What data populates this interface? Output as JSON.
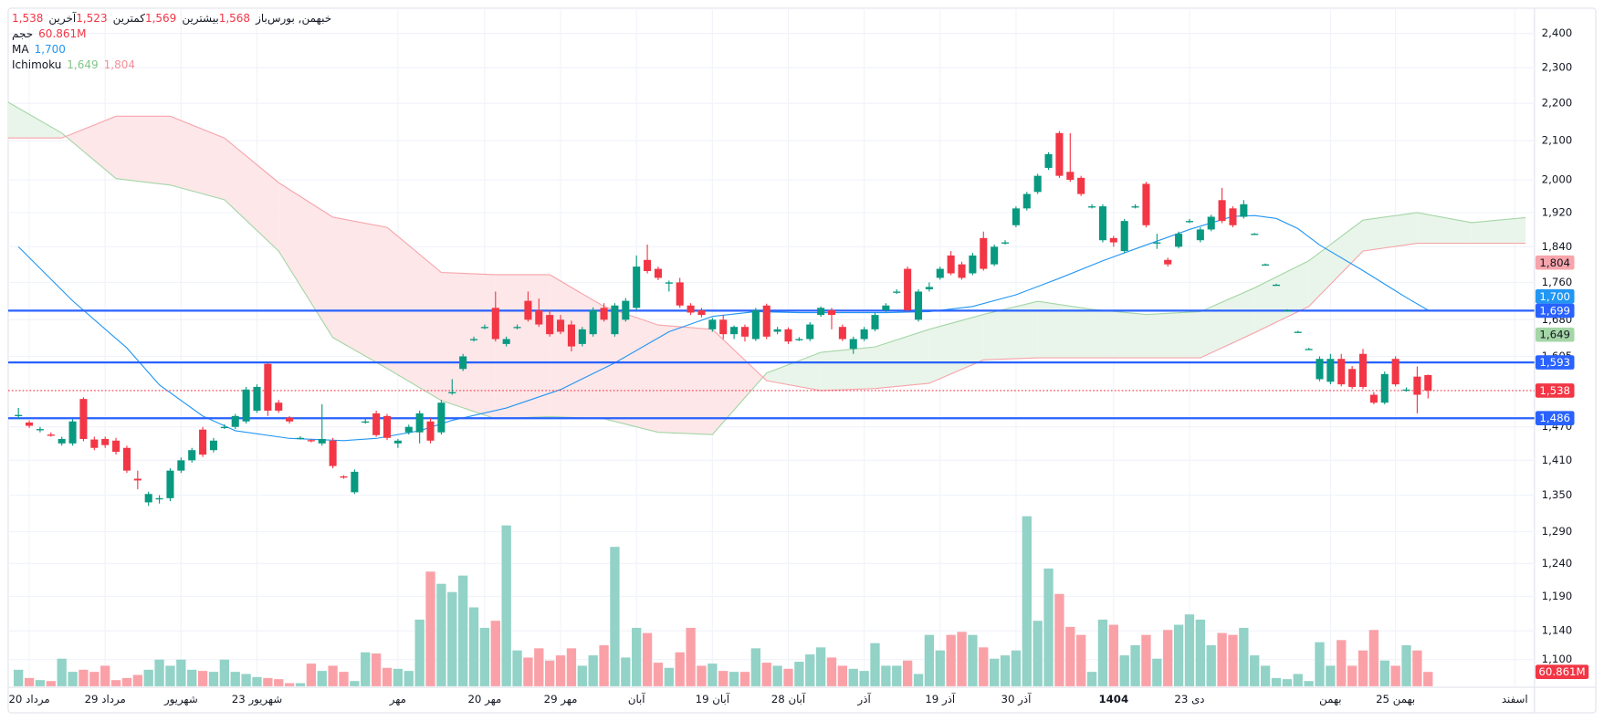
{
  "chart_data": {
    "type": "candlestick",
    "log_scale": true,
    "grid": true,
    "ylim": [
      1064,
      2477
    ],
    "yticks": [
      {
        "value": 2400,
        "label": "2,400"
      },
      {
        "value": 2300,
        "label": "2,300"
      },
      {
        "value": 2200,
        "label": "2,200"
      },
      {
        "value": 2100,
        "label": "2,100"
      },
      {
        "value": 2000,
        "label": "2,000"
      },
      {
        "value": 1920,
        "label": "1,920"
      },
      {
        "value": 1840,
        "label": "1,840"
      },
      {
        "value": 1760,
        "label": "1,760"
      },
      {
        "value": 1680,
        "label": "1,680"
      },
      {
        "value": 1605,
        "label": "1,605"
      },
      {
        "value": 1470,
        "label": "1,470"
      },
      {
        "value": 1410,
        "label": "1,410"
      },
      {
        "value": 1350,
        "label": "1,350"
      },
      {
        "value": 1290,
        "label": "1,290"
      },
      {
        "value": 1240,
        "label": "1,240"
      },
      {
        "value": 1190,
        "label": "1,190"
      },
      {
        "value": 1140,
        "label": "1,140"
      },
      {
        "value": 1100,
        "label": "1,100"
      }
    ],
    "xticks": [
      {
        "value": 1,
        "label": "20 مرداد"
      },
      {
        "value": 8,
        "label": "29 مرداد"
      },
      {
        "value": 15,
        "label": "شهریور"
      },
      {
        "value": 22,
        "label": "23 شهریور"
      },
      {
        "value": 35,
        "label": "مهر"
      },
      {
        "value": 43,
        "label": "20 مهر"
      },
      {
        "value": 50,
        "label": "29 مهر"
      },
      {
        "value": 57,
        "label": "آبان"
      },
      {
        "value": 64,
        "label": "19 آبان"
      },
      {
        "value": 71,
        "label": "28 آبان"
      },
      {
        "value": 78,
        "label": "آذر"
      },
      {
        "value": 85,
        "label": "19 آذر"
      },
      {
        "value": 92,
        "label": "30 آذر"
      },
      {
        "value": 101,
        "label": "1404",
        "bold": true
      },
      {
        "value": 108,
        "label": "23 دی"
      },
      {
        "value": 121,
        "label": "بهمن"
      },
      {
        "value": 127,
        "label": "25 بهمن"
      },
      {
        "value": 138,
        "label": "اسفند"
      }
    ],
    "up_color": "#089981",
    "down_color": "#f23645",
    "candles": [
      [
        1490,
        1505,
        1484,
        1492
      ],
      [
        1478,
        1482,
        1468,
        1472
      ],
      [
        1465,
        1470,
        1460,
        1466
      ],
      [
        1456,
        1460,
        1452,
        1455
      ],
      [
        1440,
        1452,
        1436,
        1448
      ],
      [
        1440,
        1484,
        1436,
        1480
      ],
      [
        1522,
        1525,
        1444,
        1448
      ],
      [
        1447,
        1452,
        1428,
        1432
      ],
      [
        1448,
        1452,
        1432,
        1437
      ],
      [
        1445,
        1450,
        1420,
        1425
      ],
      [
        1432,
        1436,
        1388,
        1392
      ],
      [
        1378,
        1392,
        1360,
        1375
      ],
      [
        1338,
        1356,
        1332,
        1352
      ],
      [
        1344,
        1350,
        1336,
        1345
      ],
      [
        1345,
        1396,
        1340,
        1392
      ],
      [
        1392,
        1415,
        1388,
        1410
      ],
      [
        1410,
        1432,
        1406,
        1428
      ],
      [
        1465,
        1470,
        1416,
        1420
      ],
      [
        1428,
        1450,
        1424,
        1445
      ],
      [
        1470,
        1475,
        1466,
        1470
      ],
      [
        1470,
        1494,
        1466,
        1490
      ],
      [
        1480,
        1545,
        1476,
        1540
      ],
      [
        1500,
        1550,
        1496,
        1545
      ],
      [
        1590,
        1592,
        1490,
        1500
      ],
      [
        1515,
        1520,
        1496,
        1500
      ],
      [
        1487,
        1490,
        1476,
        1480
      ],
      [
        1450,
        1453,
        1447,
        1450
      ],
      [
        1446,
        1448,
        1442,
        1445
      ],
      [
        1440,
        1512,
        1436,
        1448
      ],
      [
        1445,
        1450,
        1396,
        1400
      ],
      [
        1382,
        1384,
        1378,
        1380
      ],
      [
        1355,
        1394,
        1352,
        1390
      ],
      [
        1480,
        1485,
        1476,
        1480
      ],
      [
        1495,
        1500,
        1452,
        1455
      ],
      [
        1490,
        1494,
        1446,
        1450
      ],
      [
        1440,
        1448,
        1432,
        1445
      ],
      [
        1460,
        1474,
        1456,
        1470
      ],
      [
        1460,
        1500,
        1440,
        1495
      ],
      [
        1480,
        1486,
        1440,
        1445
      ],
      [
        1460,
        1520,
        1456,
        1515
      ],
      [
        1535,
        1560,
        1530,
        1535
      ],
      [
        1580,
        1610,
        1576,
        1605
      ],
      [
        1640,
        1645,
        1635,
        1640
      ],
      [
        1665,
        1670,
        1660,
        1665
      ],
      [
        1705,
        1740,
        1635,
        1640
      ],
      [
        1630,
        1645,
        1625,
        1640
      ],
      [
        1665,
        1670,
        1660,
        1665
      ],
      [
        1720,
        1740,
        1676,
        1680
      ],
      [
        1700,
        1725,
        1665,
        1670
      ],
      [
        1690,
        1700,
        1645,
        1650
      ],
      [
        1680,
        1690,
        1650,
        1655
      ],
      [
        1670,
        1678,
        1615,
        1625
      ],
      [
        1630,
        1665,
        1625,
        1660
      ],
      [
        1650,
        1706,
        1645,
        1700
      ],
      [
        1705,
        1715,
        1676,
        1680
      ],
      [
        1650,
        1715,
        1645,
        1710
      ],
      [
        1680,
        1726,
        1676,
        1720
      ],
      [
        1705,
        1820,
        1700,
        1795
      ],
      [
        1810,
        1845,
        1780,
        1785
      ],
      [
        1790,
        1795,
        1765,
        1770
      ],
      [
        1760,
        1764,
        1740,
        1760
      ],
      [
        1760,
        1770,
        1705,
        1710
      ],
      [
        1710,
        1715,
        1690,
        1695
      ],
      [
        1700,
        1705,
        1685,
        1690
      ],
      [
        1660,
        1684,
        1655,
        1680
      ],
      [
        1680,
        1690,
        1640,
        1650
      ],
      [
        1650,
        1668,
        1640,
        1665
      ],
      [
        1665,
        1670,
        1635,
        1645
      ],
      [
        1640,
        1705,
        1636,
        1700
      ],
      [
        1710,
        1714,
        1640,
        1645
      ],
      [
        1655,
        1665,
        1650,
        1660
      ],
      [
        1660,
        1664,
        1630,
        1635
      ],
      [
        1640,
        1644,
        1636,
        1640
      ],
      [
        1640,
        1675,
        1636,
        1670
      ],
      [
        1690,
        1708,
        1686,
        1705
      ],
      [
        1700,
        1705,
        1660,
        1690
      ],
      [
        1665,
        1670,
        1636,
        1640
      ],
      [
        1620,
        1645,
        1610,
        1640
      ],
      [
        1640,
        1665,
        1636,
        1660
      ],
      [
        1660,
        1695,
        1656,
        1690
      ],
      [
        1700,
        1715,
        1696,
        1710
      ],
      [
        1740,
        1745,
        1735,
        1740
      ],
      [
        1790,
        1795,
        1696,
        1700
      ],
      [
        1680,
        1745,
        1676,
        1740
      ],
      [
        1745,
        1760,
        1740,
        1750
      ],
      [
        1770,
        1795,
        1766,
        1790
      ],
      [
        1820,
        1830,
        1776,
        1780
      ],
      [
        1800,
        1806,
        1766,
        1770
      ],
      [
        1780,
        1826,
        1776,
        1820
      ],
      [
        1860,
        1875,
        1786,
        1790
      ],
      [
        1800,
        1845,
        1796,
        1840
      ],
      [
        1850,
        1855,
        1845,
        1850
      ],
      [
        1890,
        1935,
        1885,
        1930
      ],
      [
        1930,
        1970,
        1925,
        1965
      ],
      [
        1970,
        2015,
        1965,
        2010
      ],
      [
        2030,
        2070,
        2025,
        2065
      ],
      [
        2120,
        2125,
        2005,
        2010
      ],
      [
        2020,
        2120,
        1995,
        2000
      ],
      [
        2005,
        2010,
        1960,
        1965
      ],
      [
        1935,
        1940,
        1930,
        1935
      ],
      [
        1855,
        1940,
        1850,
        1935
      ],
      [
        1860,
        1865,
        1840,
        1850
      ],
      [
        1830,
        1905,
        1826,
        1900
      ],
      [
        1935,
        1940,
        1930,
        1935
      ],
      [
        1990,
        1995,
        1885,
        1890
      ],
      [
        1850,
        1870,
        1835,
        1850
      ],
      [
        1810,
        1815,
        1795,
        1800
      ],
      [
        1840,
        1875,
        1836,
        1870
      ],
      [
        1900,
        1905,
        1895,
        1900
      ],
      [
        1855,
        1885,
        1850,
        1880
      ],
      [
        1880,
        1915,
        1876,
        1910
      ],
      [
        1950,
        1980,
        1895,
        1900
      ],
      [
        1930,
        1935,
        1885,
        1890
      ],
      [
        1910,
        1950,
        1906,
        1940
      ],
      [
        1870,
        1872,
        1868,
        1870
      ],
      [
        1800,
        1802,
        1798,
        1800
      ],
      [
        1755,
        1757,
        1753,
        1755
      ],
      [
        1700,
        1702,
        1698,
        1700
      ],
      [
        1655,
        1657,
        1653,
        1655
      ],
      [
        1620,
        1622,
        1618,
        1620
      ],
      [
        1560,
        1605,
        1556,
        1600
      ],
      [
        1555,
        1610,
        1550,
        1600
      ],
      [
        1600,
        1610,
        1546,
        1550
      ],
      [
        1580,
        1586,
        1541,
        1545
      ],
      [
        1610,
        1620,
        1541,
        1545
      ],
      [
        1530,
        1535,
        1512,
        1515
      ],
      [
        1515,
        1575,
        1512,
        1570
      ],
      [
        1600,
        1605,
        1546,
        1550
      ],
      [
        1540,
        1544,
        1536,
        1540
      ],
      [
        1565,
        1585,
        1495,
        1530
      ],
      [
        1568,
        1569,
        1523,
        1538
      ]
    ],
    "volume": {
      "name": "حجم",
      "up_color": "#92d2c7",
      "down_color": "#faa1a8",
      "ylim": [
        0,
        2880
      ],
      "values": [
        70,
        35,
        26,
        22,
        117,
        61,
        70,
        61,
        87,
        26,
        35,
        48,
        70,
        113,
        87,
        113,
        70,
        65,
        61,
        113,
        61,
        52,
        39,
        35,
        30,
        13,
        13,
        96,
        65,
        87,
        61,
        22,
        144,
        139,
        78,
        74,
        65,
        283,
        487,
        435,
        400,
        470,
        335,
        248,
        278,
        683,
        152,
        122,
        161,
        109,
        131,
        161,
        87,
        131,
        174,
        592,
        122,
        248,
        226,
        100,
        78,
        144,
        248,
        87,
        96,
        65,
        61,
        61,
        161,
        100,
        87,
        74,
        104,
        135,
        165,
        122,
        87,
        74,
        65,
        183,
        87,
        87,
        109,
        52,
        218,
        152,
        218,
        231,
        218,
        165,
        117,
        131,
        152,
        722,
        278,
        500,
        392,
        252,
        218,
        61,
        283,
        261,
        131,
        174,
        218,
        117,
        239,
        261,
        305,
        283,
        174,
        226,
        218,
        248,
        131,
        87,
        35,
        30,
        52,
        22,
        187,
        87,
        196,
        87,
        152,
        239,
        109,
        87,
        174,
        152,
        60.861
      ],
      "last": {
        "value": 60.861,
        "label": "60.861M",
        "color": "#f23645"
      }
    },
    "ma": {
      "name": "MA",
      "color": "#2196f3",
      "x": [
        0,
        5,
        10,
        13,
        17,
        20,
        25,
        30,
        33,
        37,
        40,
        45,
        50,
        55,
        60,
        64,
        68,
        72,
        76,
        80,
        84,
        88,
        92,
        96,
        100,
        104,
        108,
        112,
        114,
        116,
        118,
        120,
        124,
        128,
        130
      ],
      "values": [
        1840,
        1720,
        1622,
        1549,
        1490,
        1463,
        1449,
        1445,
        1449,
        1463,
        1482,
        1505,
        1540,
        1592,
        1655,
        1687,
        1697,
        1695,
        1695,
        1695,
        1697,
        1708,
        1733,
        1769,
        1808,
        1844,
        1880,
        1911,
        1913,
        1906,
        1882,
        1844,
        1786,
        1727,
        1700
      ]
    },
    "ichimoku": {
      "name": "Ichimoku",
      "span_a_color": "#a5d6a7",
      "span_b_color": "#f7a4ab",
      "up_fill": "#e9f5ea",
      "down_fill": "#fde7e9",
      "x": [
        -1,
        4,
        9,
        14,
        19,
        24,
        29,
        34,
        39,
        44,
        49,
        54,
        59,
        64,
        69,
        74,
        79,
        84,
        89,
        94,
        99,
        104,
        109,
        114,
        119,
        124,
        129,
        134,
        139
      ],
      "span_a": [
        2204,
        2120,
        2003,
        1987,
        1951,
        1830,
        1643,
        1581,
        1519,
        1485,
        1489,
        1485,
        1460,
        1456,
        1572,
        1613,
        1624,
        1660,
        1691,
        1719,
        1702,
        1691,
        1697,
        1748,
        1808,
        1902,
        1920,
        1896,
        1908
      ],
      "span_b": [
        2107,
        2107,
        2165,
        2165,
        2107,
        1993,
        1909,
        1885,
        1782,
        1777,
        1777,
        1708,
        1669,
        1660,
        1557,
        1538,
        1542,
        1552,
        1598,
        1602,
        1602,
        1602,
        1602,
        1653,
        1708,
        1830,
        1848,
        1848,
        1848
      ]
    },
    "hlines": {
      "color": "#2962ff",
      "levels": [
        {
          "value": 1699,
          "label": "1,699"
        },
        {
          "value": 1593,
          "label": "1,593"
        },
        {
          "value": 1486,
          "label": "1,486"
        }
      ]
    },
    "last_price": {
      "value": 1538,
      "label": "1,538",
      "color": "#f23645"
    },
    "price_markers": [
      {
        "value": 1804,
        "label": "1,804",
        "color": "#f7a4ab",
        "text_color": "#131722"
      },
      {
        "value": 1700,
        "label": "1,700",
        "color": "#2196f3",
        "text_color": "#ffffff"
      },
      {
        "value": 1649,
        "label": "1,649",
        "color": "#a5d6a7",
        "text_color": "#131722"
      }
    ],
    "legend": {
      "symbol": "خبهمن, بورس",
      "fields": [
        {
          "name": "باز",
          "value": {
            "value": 1568,
            "label": "1,568"
          }
        },
        {
          "name": "بیشترین",
          "value": {
            "value": 1569,
            "label": "1,569"
          }
        },
        {
          "name": "کمترین",
          "value": {
            "value": 1523,
            "label": "1,523"
          }
        },
        {
          "name": "آخرین",
          "value": {
            "value": 1538,
            "label": "1,538"
          }
        }
      ],
      "ma_value": {
        "value": 1700,
        "label": "1,700"
      },
      "ichimoku_values": [
        {
          "value": 1649,
          "label": "1,649"
        },
        {
          "value": 1804,
          "label": "1,804"
        }
      ]
    }
  }
}
